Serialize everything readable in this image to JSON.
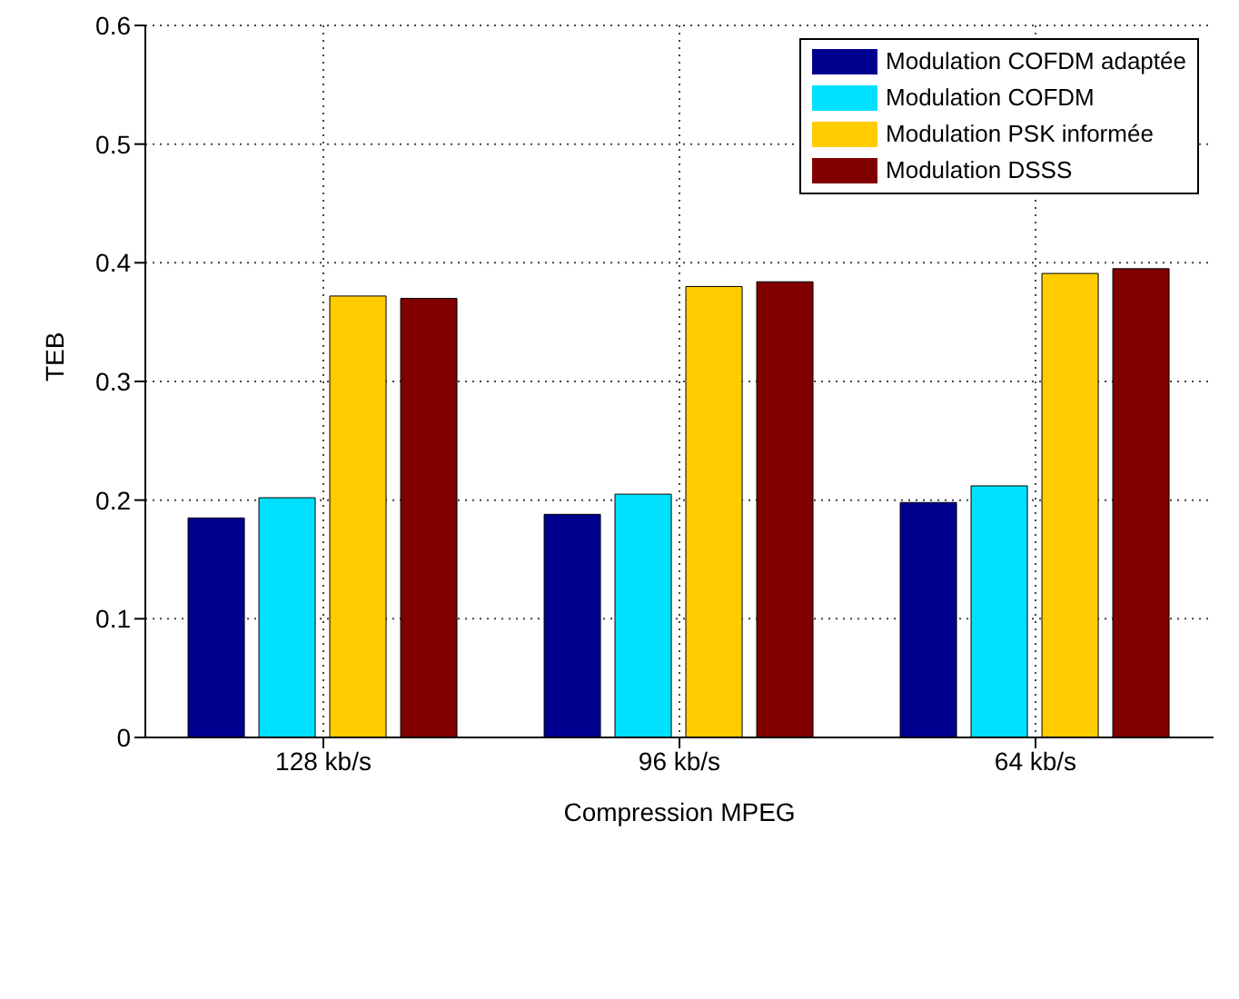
{
  "chart_data": {
    "type": "bar",
    "xlabel": "Compression MPEG",
    "ylabel": "TEB",
    "categories": [
      "128 kb/s",
      "96 kb/s",
      "64 kb/s"
    ],
    "series": [
      {
        "name": "Modulation COFDM adaptée",
        "color": "#00008f",
        "values": [
          0.185,
          0.188,
          0.198
        ]
      },
      {
        "name": "Modulation COFDM",
        "color": "#00e0ff",
        "values": [
          0.202,
          0.205,
          0.212
        ]
      },
      {
        "name": "Modulation PSK informée",
        "color": "#ffcc00",
        "values": [
          0.372,
          0.38,
          0.391
        ]
      },
      {
        "name": "Modulation DSSS",
        "color": "#800000",
        "values": [
          0.37,
          0.384,
          0.395
        ]
      }
    ],
    "ylim": [
      0,
      0.6
    ],
    "yticks": [
      0,
      0.1,
      0.2,
      0.3,
      0.4,
      0.5,
      0.6
    ],
    "grid": true,
    "legend": "top right"
  }
}
